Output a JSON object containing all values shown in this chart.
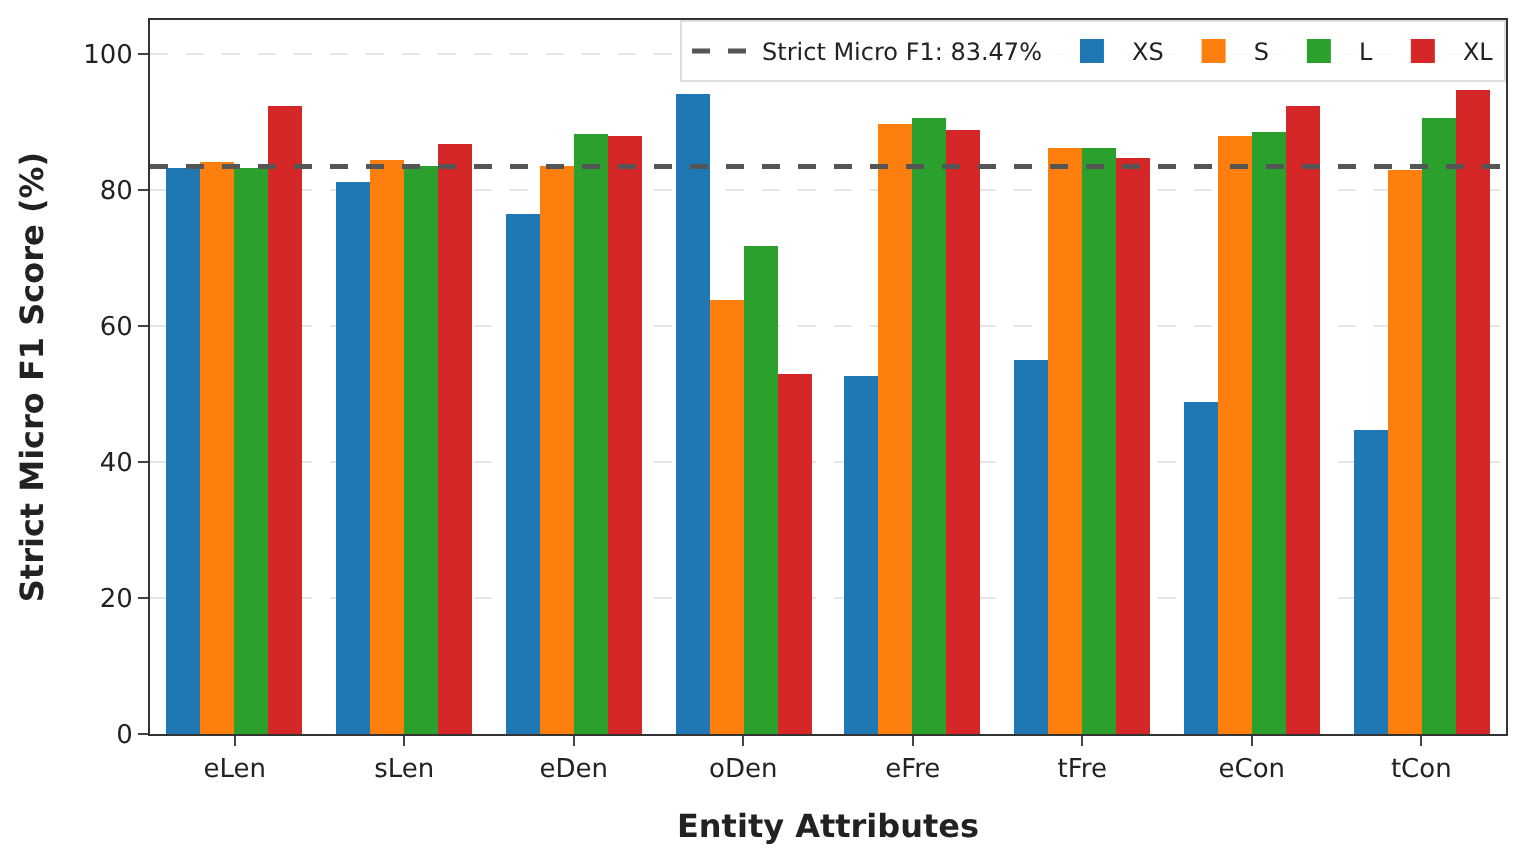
{
  "chart_data": {
    "type": "bar",
    "xlabel": "Entity Attributes",
    "ylabel": "Strict Micro F1 Score (%)",
    "categories": [
      "eLen",
      "sLen",
      "eDen",
      "oDen",
      "eFre",
      "tFre",
      "eCon",
      "tCon"
    ],
    "series": [
      {
        "name": "XS",
        "color": "#1f77b4",
        "values": [
          83.1,
          81.1,
          76.5,
          94.0,
          52.7,
          55.0,
          48.7,
          44.6
        ]
      },
      {
        "name": "S",
        "color": "#ff7f0e",
        "values": [
          84.2,
          84.5,
          83.6,
          63.8,
          89.7,
          86.2,
          87.9,
          82.8
        ]
      },
      {
        "name": "L",
        "color": "#2ca02c",
        "values": [
          83.1,
          83.6,
          88.2,
          71.8,
          90.5,
          86.2,
          88.5,
          90.5
        ]
      },
      {
        "name": "XL",
        "color": "#d62728",
        "values": [
          92.3,
          86.8,
          87.9,
          52.9,
          88.8,
          84.8,
          92.3,
          94.8
        ]
      }
    ],
    "ref_lines": [
      {
        "axis": "y",
        "value": 83.47,
        "label": "Strict Micro F1: 83.47%",
        "color": "#555555",
        "line_style": "dashed"
      }
    ],
    "ylim": [
      0,
      105
    ],
    "yticks": [
      0,
      20,
      40,
      60,
      80,
      100
    ],
    "grid": "y",
    "legend": "top right"
  }
}
